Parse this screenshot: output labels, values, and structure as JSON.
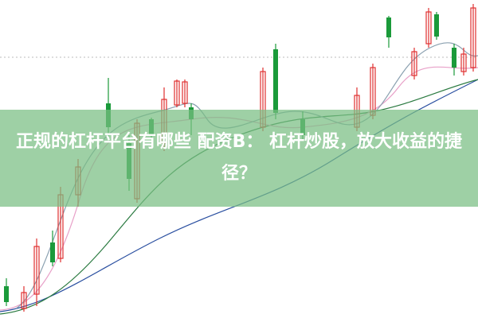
{
  "header": {
    "title": "正规的杠杆平台有哪些 配资B： 杠杆炒股，放大收益的捷径？"
  }
}
